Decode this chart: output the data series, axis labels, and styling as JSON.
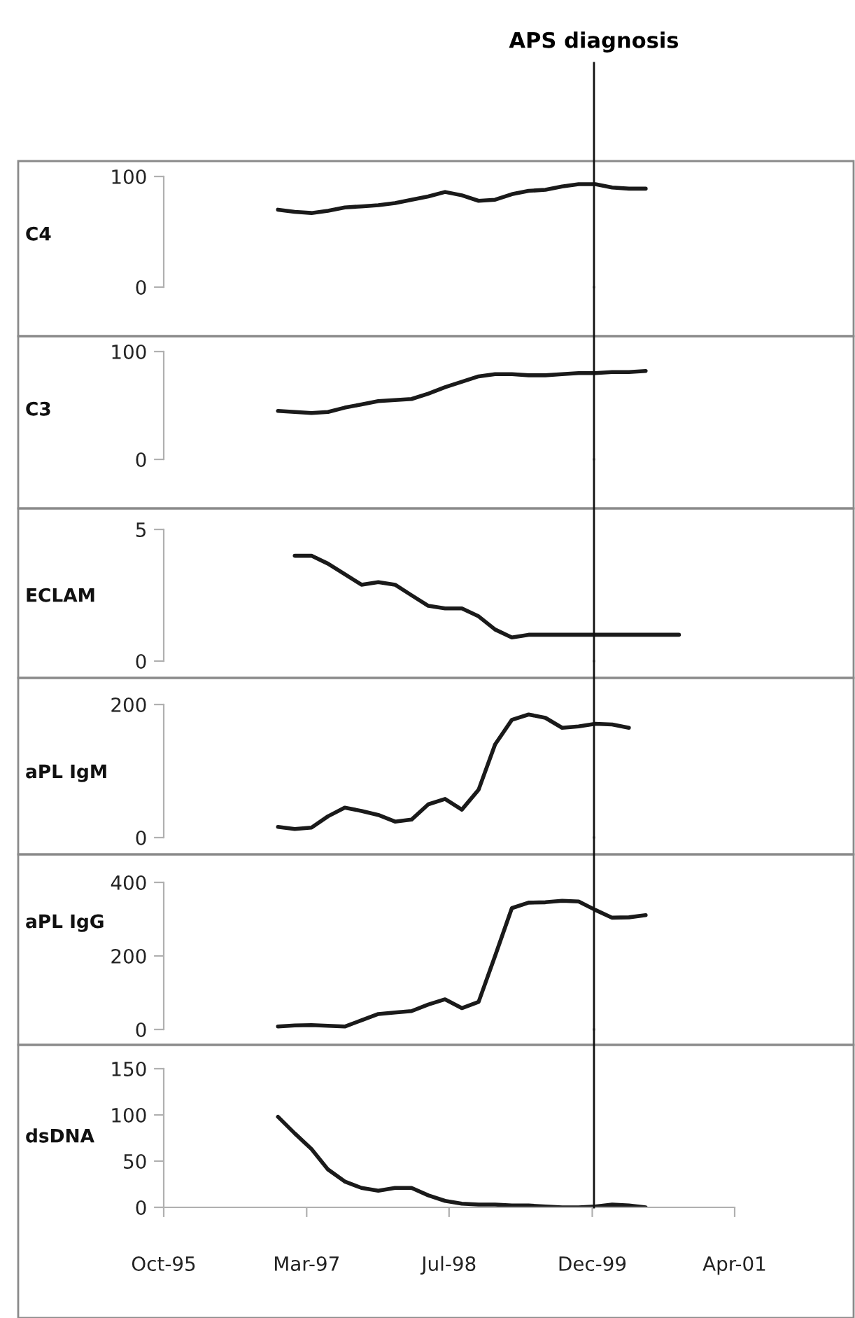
{
  "chart_data": [
    {
      "type": "line",
      "ylabel": "C4",
      "color": "#1a1a1a",
      "xlim": [
        "1995-10-15",
        "2001-04-15"
      ],
      "ylim": [
        0,
        100
      ],
      "yticks": [
        0,
        100
      ],
      "tick_labels": "y",
      "grid": false,
      "ref_lines": [
        {
          "axis": "x",
          "value": "1999-12-07",
          "label": "APS diagnosis"
        }
      ],
      "x": [
        "1996-11-20",
        "1997-01-18",
        "1997-03-18",
        "1997-05-15",
        "1997-07-13",
        "1997-09-10",
        "1997-11-08",
        "1998-01-06",
        "1998-03-05",
        "1998-05-03",
        "1998-07-01",
        "1998-08-29",
        "1998-10-27",
        "1998-12-24",
        "1999-02-21",
        "1999-04-21",
        "1999-06-19",
        "1999-08-17",
        "1999-10-14",
        "1999-12-12",
        "2000-02-09",
        "2000-04-08",
        "2000-06-06"
      ],
      "values": [
        70,
        68,
        67,
        69,
        72,
        73,
        74,
        76,
        79,
        82,
        86,
        83,
        78,
        79,
        84,
        87,
        88,
        91,
        93,
        93,
        90,
        89,
        89
      ]
    },
    {
      "type": "line",
      "ylabel": "C3",
      "color": "#1a1a1a",
      "xlim": [
        "1995-10-15",
        "2001-04-15"
      ],
      "ylim": [
        0,
        100
      ],
      "yticks": [
        0,
        100
      ],
      "tick_labels": "y",
      "grid": false,
      "ref_lines": [
        {
          "axis": "x",
          "value": "1999-12-07"
        }
      ],
      "x": [
        "1996-11-20",
        "1997-01-18",
        "1997-03-18",
        "1997-05-15",
        "1997-07-13",
        "1997-09-10",
        "1997-11-08",
        "1998-01-06",
        "1998-03-05",
        "1998-05-03",
        "1998-07-01",
        "1998-08-29",
        "1998-10-27",
        "1998-12-24",
        "1999-02-21",
        "1999-04-21",
        "1999-06-19",
        "1999-08-17",
        "1999-10-14",
        "1999-12-12",
        "2000-02-09",
        "2000-04-08",
        "2000-06-06"
      ],
      "values": [
        45,
        44,
        43,
        44,
        48,
        51,
        54,
        55,
        56,
        61,
        67,
        72,
        77,
        79,
        79,
        78,
        78,
        79,
        80,
        80,
        81,
        81,
        82
      ]
    },
    {
      "type": "line",
      "ylabel": "ECLAM",
      "color": "#1a1a1a",
      "xlim": [
        "1995-10-15",
        "2001-04-15"
      ],
      "ylim": [
        0,
        5
      ],
      "yticks": [
        0,
        5
      ],
      "tick_labels": "y",
      "grid": false,
      "ref_lines": [
        {
          "axis": "x",
          "value": "1999-12-07"
        }
      ],
      "x": [
        "1997-01-18",
        "1997-03-18",
        "1997-05-15",
        "1997-07-13",
        "1997-09-10",
        "1997-11-08",
        "1998-01-06",
        "1998-03-05",
        "1998-05-03",
        "1998-07-01",
        "1998-08-29",
        "1998-10-27",
        "1998-12-24",
        "1999-02-21",
        "1999-04-21",
        "1999-06-19",
        "1999-08-17",
        "1999-10-14",
        "1999-12-12",
        "2000-02-09",
        "2000-04-08",
        "2000-06-06",
        "2000-08-03",
        "2000-10-01"
      ],
      "values": [
        4.0,
        4.0,
        3.7,
        3.3,
        2.9,
        3.0,
        2.9,
        2.5,
        2.1,
        2.0,
        2.0,
        1.7,
        1.2,
        0.9,
        1.0,
        1.0,
        1.0,
        1.0,
        1.0,
        1.0,
        1.0,
        1.0,
        1.0,
        1.0
      ]
    },
    {
      "type": "line",
      "ylabel": "aPL IgM",
      "color": "#1a1a1a",
      "xlim": [
        "1995-10-15",
        "2001-04-15"
      ],
      "ylim": [
        0,
        200
      ],
      "yticks": [
        0,
        200
      ],
      "tick_labels": "y",
      "grid": false,
      "ref_lines": [
        {
          "axis": "x",
          "value": "1999-12-07"
        }
      ],
      "x": [
        "1996-11-20",
        "1997-01-18",
        "1997-03-18",
        "1997-05-15",
        "1997-07-13",
        "1997-09-10",
        "1997-11-08",
        "1998-01-06",
        "1998-03-05",
        "1998-05-03",
        "1998-07-01",
        "1998-08-29",
        "1998-10-27",
        "1998-12-24",
        "1999-02-21",
        "1999-04-21",
        "1999-06-19",
        "1999-08-17",
        "1999-10-14",
        "1999-12-12",
        "2000-02-09",
        "2000-04-08"
      ],
      "values": [
        16,
        13,
        15,
        32,
        45,
        40,
        34,
        24,
        27,
        50,
        58,
        42,
        72,
        140,
        177,
        185,
        180,
        165,
        167,
        171,
        170,
        165
      ]
    },
    {
      "type": "line",
      "ylabel": "aPL IgG",
      "color": "#1a1a1a",
      "xlim": [
        "1995-10-15",
        "2001-04-15"
      ],
      "ylim": [
        0,
        400
      ],
      "yticks": [
        0,
        200,
        400
      ],
      "tick_labels": "y",
      "grid": false,
      "ref_lines": [
        {
          "axis": "x",
          "value": "1999-12-07"
        }
      ],
      "x": [
        "1996-11-20",
        "1997-01-18",
        "1997-03-18",
        "1997-05-15",
        "1997-07-13",
        "1997-09-10",
        "1997-11-08",
        "1998-01-06",
        "1998-03-05",
        "1998-05-03",
        "1998-07-01",
        "1998-08-29",
        "1998-10-27",
        "1998-12-24",
        "1999-02-21",
        "1999-04-21",
        "1999-06-19",
        "1999-08-17",
        "1999-10-14",
        "1999-12-12",
        "2000-02-09",
        "2000-04-08",
        "2000-06-06"
      ],
      "values": [
        8,
        11,
        12,
        10,
        8,
        25,
        42,
        46,
        50,
        68,
        82,
        58,
        75,
        200,
        330,
        345,
        346,
        350,
        348,
        325,
        304,
        305,
        311
      ]
    },
    {
      "type": "line",
      "ylabel": "dsDNA",
      "color": "#1a1a1a",
      "xlim": [
        "1995-10-15",
        "2001-04-15"
      ],
      "ylim": [
        0,
        150
      ],
      "yticks": [
        0,
        50,
        100,
        150
      ],
      "grid": false,
      "ref_lines": [
        {
          "axis": "x",
          "value": "1999-12-07"
        }
      ],
      "xticks": [
        {
          "value": "1995-10-15",
          "label": "Oct-95"
        },
        {
          "value": "1997-03-01",
          "label": "Mar-97"
        },
        {
          "value": "1998-07-15",
          "label": "Jul-98"
        },
        {
          "value": "1999-12-01",
          "label": "Dec-99"
        },
        {
          "value": "2001-04-15",
          "label": "Apr-01"
        }
      ],
      "x": [
        "1996-11-20",
        "1997-01-18",
        "1997-03-18",
        "1997-05-15",
        "1997-07-13",
        "1997-09-10",
        "1997-11-08",
        "1998-01-06",
        "1998-03-05",
        "1998-05-03",
        "1998-07-01",
        "1998-08-29",
        "1998-10-27",
        "1998-12-24",
        "1999-02-21",
        "1999-04-21",
        "1999-06-19",
        "1999-08-17",
        "1999-10-14",
        "1999-12-12",
        "2000-02-09",
        "2000-04-08",
        "2000-06-06"
      ],
      "values": [
        98,
        80,
        63,
        41,
        28,
        21,
        18,
        21,
        21,
        13,
        7,
        4,
        3,
        3,
        2,
        2,
        1,
        0,
        0,
        1,
        3,
        2,
        0
      ]
    }
  ]
}
